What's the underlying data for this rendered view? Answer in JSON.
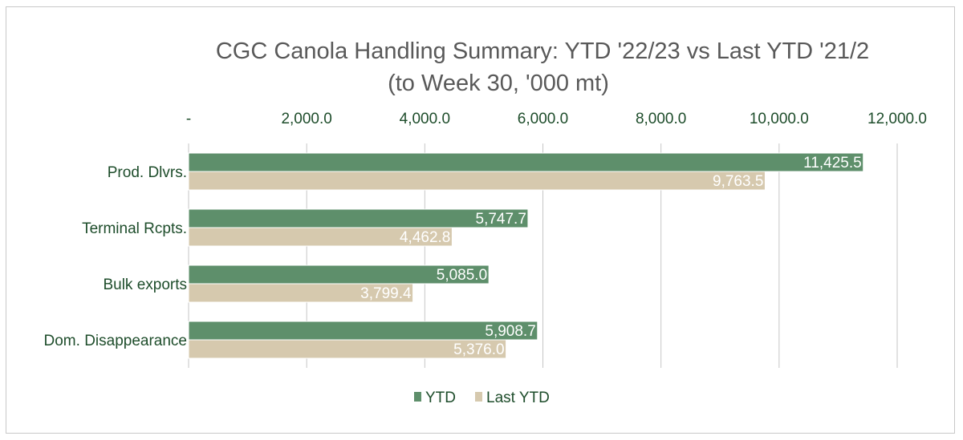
{
  "chart_data": {
    "type": "bar",
    "orientation": "horizontal",
    "title": "CGC Canola Handling Summary: YTD '22/23 vs Last YTD '21/2",
    "subtitle": "(to Week  30,  '000 mt)",
    "categories": [
      "Prod. Dlvrs.",
      "Terminal Rcpts.",
      "Bulk exports",
      "Dom. Disappearance"
    ],
    "series": [
      {
        "name": "YTD",
        "color": "#5e8f6b",
        "values": [
          11425.5,
          5747.7,
          5085.0,
          5908.7
        ],
        "labels": [
          "11,425.5",
          "5,747.7",
          "5,085.0",
          "5,908.7"
        ]
      },
      {
        "name": "Last YTD",
        "color": "#d6c9ae",
        "values": [
          9763.5,
          4462.8,
          3799.4,
          5376.0
        ],
        "labels": [
          "9,763.5",
          "4,462.8",
          "3,799.4",
          "5,376.0"
        ]
      }
    ],
    "xlim": [
      0,
      12000
    ],
    "ticks": [
      0,
      2000,
      4000,
      6000,
      8000,
      10000,
      12000
    ],
    "tick_labels": [
      "-",
      "2,000.0",
      "4,000.0",
      "6,000.0",
      "8,000.0",
      "10,000.0",
      "12,000.0"
    ],
    "axis_position": "top",
    "grid": true,
    "legend": "bottom-center"
  }
}
